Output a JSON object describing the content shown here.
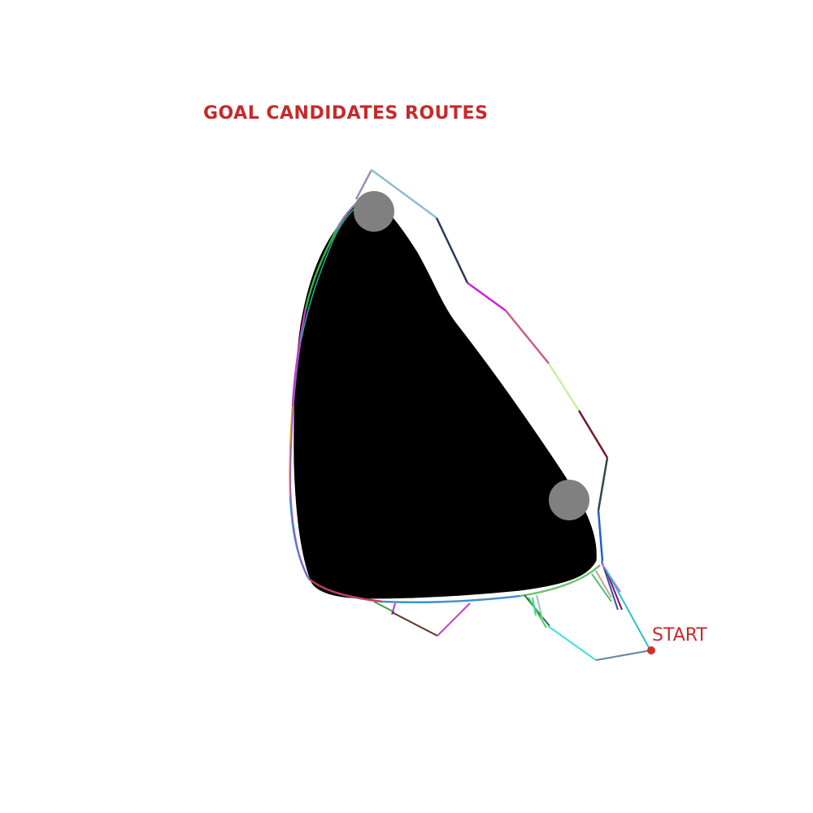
{
  "title": "GOAL CANDIDATES ROUTES",
  "start_label": "START",
  "colors": {
    "label": "#c62a2a",
    "obstacle": "#000000",
    "goal_marker": "#808080",
    "start_marker": "#d23030",
    "background": "#ffffff"
  },
  "legend": {
    "goal_candidates_count": 2
  }
}
